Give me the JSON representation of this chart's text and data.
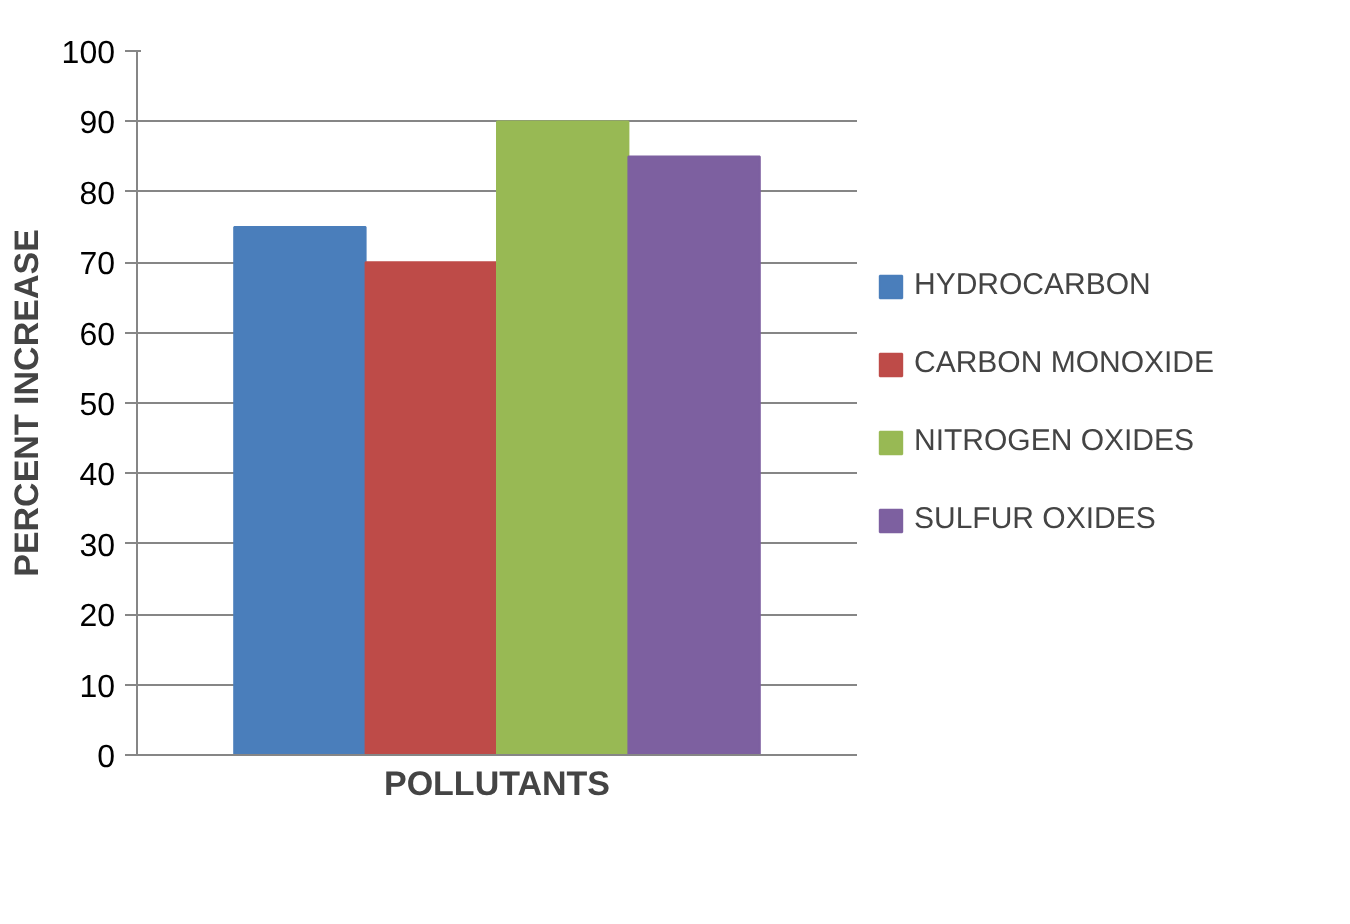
{
  "chart_data": {
    "type": "bar",
    "xlabel": "POLLUTANTS",
    "ylabel": "PERCENT INCREASE",
    "categories": [
      null
    ],
    "series": [
      {
        "name": "HYDROCARBON",
        "color": "#4a7ebb",
        "values": [
          75
        ]
      },
      {
        "name": "CARBON MONOXIDE",
        "color": "#be4b48",
        "values": [
          70
        ]
      },
      {
        "name": "NITROGEN OXIDES",
        "color": "#98b954",
        "values": [
          90
        ]
      },
      {
        "name": "SULFUR OXIDES",
        "color": "#7d60a0",
        "values": [
          85
        ]
      }
    ],
    "ylim": [
      0,
      100
    ],
    "yticks": [
      0,
      10,
      20,
      30,
      40,
      50,
      60,
      70,
      80,
      90,
      100
    ],
    "grid": "y",
    "legend": "right"
  }
}
